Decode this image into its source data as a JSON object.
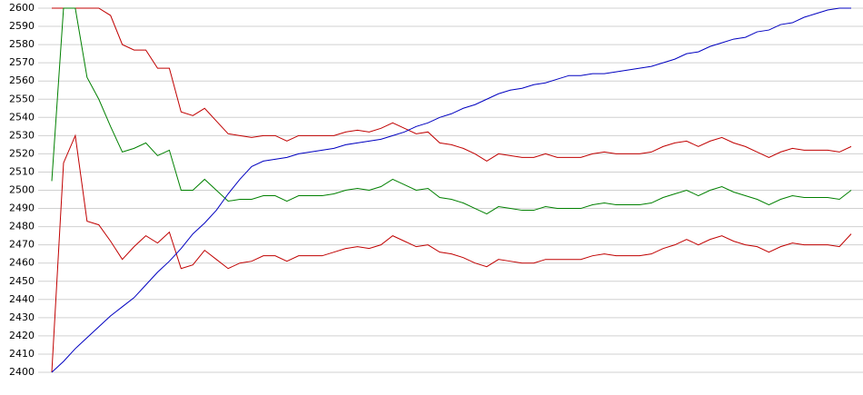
{
  "chart_data": {
    "type": "line",
    "categories": [
      null,
      null,
      null,
      null,
      null,
      null,
      null,
      null,
      null,
      null,
      null,
      null,
      null,
      null,
      null,
      null,
      null,
      null,
      null,
      null,
      null,
      null,
      null,
      null,
      null,
      null,
      null,
      null,
      null,
      null,
      null,
      null,
      null,
      null,
      null,
      null,
      null,
      null,
      null,
      null,
      null,
      null,
      null,
      null,
      null,
      null,
      null,
      null,
      null,
      null,
      null,
      null,
      null,
      null,
      null,
      null,
      null,
      null,
      null,
      null,
      null,
      null,
      null,
      null,
      null,
      null,
      null,
      null,
      null
    ],
    "series": [
      {
        "color": "#c00000",
        "values": [
          2600,
          2600,
          2600,
          2600,
          2600,
          2596,
          2580,
          2577,
          2577,
          2567,
          2567,
          2543,
          2541,
          2545,
          2538,
          2531,
          2530,
          2529,
          2530,
          2530,
          2527,
          2530,
          2530,
          2530,
          2530,
          2532,
          2533,
          2532,
          2534,
          2537,
          2534,
          2531,
          2532,
          2526,
          2525,
          2523,
          2520,
          2516,
          2520,
          2519,
          2518,
          2518,
          2520,
          2518,
          2518,
          2518,
          2520,
          2521,
          2520,
          2520,
          2520,
          2521,
          2524,
          2526,
          2527,
          2524,
          2527,
          2529,
          2526,
          2524,
          2521,
          2518,
          2521,
          2523,
          2522,
          2522,
          2522,
          2521,
          2524
        ]
      },
      {
        "color": "#008000",
        "values": [
          2505,
          2600,
          2600,
          2562,
          2550,
          2535,
          2521,
          2523,
          2526,
          2519,
          2522,
          2500,
          2500,
          2506,
          2500,
          2494,
          2495,
          2495,
          2497,
          2497,
          2494,
          2497,
          2497,
          2497,
          2498,
          2500,
          2501,
          2500,
          2502,
          2506,
          2503,
          2500,
          2501,
          2496,
          2495,
          2493,
          2490,
          2487,
          2491,
          2490,
          2489,
          2489,
          2491,
          2490,
          2490,
          2490,
          2492,
          2493,
          2492,
          2492,
          2492,
          2493,
          2496,
          2498,
          2500,
          2497,
          2500,
          2502,
          2499,
          2497,
          2495,
          2492,
          2495,
          2497,
          2496,
          2496,
          2496,
          2495,
          2500
        ]
      },
      {
        "color": "#c00000",
        "values": [
          2400,
          2515,
          2530,
          2483,
          2481,
          2472,
          2462,
          2469,
          2475,
          2471,
          2477,
          2457,
          2459,
          2467,
          2462,
          2457,
          2460,
          2461,
          2464,
          2464,
          2461,
          2464,
          2464,
          2464,
          2466,
          2468,
          2469,
          2468,
          2470,
          2475,
          2472,
          2469,
          2470,
          2466,
          2465,
          2463,
          2460,
          2458,
          2462,
          2461,
          2460,
          2460,
          2462,
          2462,
          2462,
          2462,
          2464,
          2465,
          2464,
          2464,
          2464,
          2465,
          2468,
          2470,
          2473,
          2470,
          2473,
          2475,
          2472,
          2470,
          2469,
          2466,
          2469,
          2471,
          2470,
          2470,
          2470,
          2469,
          2476
        ]
      },
      {
        "color": "#0000c0",
        "values": [
          2400,
          2406,
          2413,
          2419,
          2425,
          2431,
          2436,
          2441,
          2448,
          2455,
          2461,
          2468,
          2476,
          2482,
          2489,
          2498,
          2506,
          2513,
          2516,
          2517,
          2518,
          2520,
          2521,
          2522,
          2523,
          2525,
          2526,
          2527,
          2528,
          2530,
          2532,
          2535,
          2537,
          2540,
          2542,
          2545,
          2547,
          2550,
          2553,
          2555,
          2556,
          2558,
          2559,
          2561,
          2563,
          2563,
          2564,
          2564,
          2565,
          2566,
          2567,
          2568,
          2570,
          2572,
          2575,
          2576,
          2579,
          2581,
          2583,
          2584,
          2587,
          2588,
          2591,
          2592,
          2595,
          2597,
          2599,
          2600,
          2600
        ]
      }
    ],
    "ylim": [
      2400,
      2600
    ],
    "yticks": [
      2400,
      2410,
      2420,
      2430,
      2440,
      2450,
      2460,
      2470,
      2480,
      2490,
      2500,
      2510,
      2520,
      2530,
      2540,
      2550,
      2560,
      2570,
      2580,
      2590,
      2600
    ],
    "grid": true
  }
}
